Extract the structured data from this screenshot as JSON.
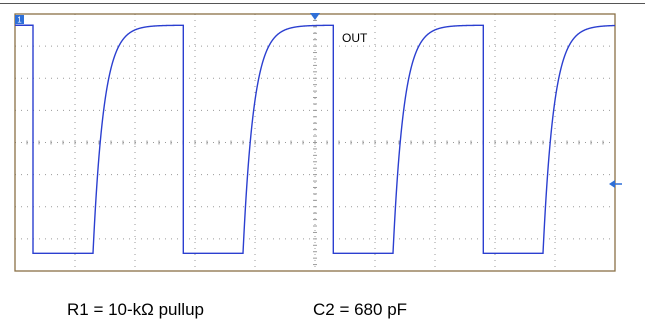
{
  "captions": {
    "r1": "R1 = 10-kΩ pullup",
    "c2": "C2 = 680 pF"
  },
  "colors": {
    "trace": "#2b3fd0",
    "frame": "#8a7046",
    "grid": "#9a9a9a",
    "marker": "#2e6fd8"
  },
  "chart_data": {
    "type": "line",
    "title": "",
    "xlabel": "",
    "ylabel": "",
    "grid": true,
    "divisions": {
      "x": 10,
      "y": 8
    },
    "xlim": [
      0,
      10
    ],
    "ylim": [
      0,
      8
    ],
    "series": [
      {
        "name": "OUT",
        "waveform": "square-with-rc-rise",
        "high_level": 7.65,
        "low_level": 0.55,
        "period_div": 2.5,
        "low_duration_div": 1.0,
        "first_fall_div": 0.3,
        "rise_time_constant_div": 0.18
      }
    ],
    "markers": {
      "channel_ground_left": "1",
      "trigger_position": "top-center",
      "trigger_level": "right"
    }
  }
}
